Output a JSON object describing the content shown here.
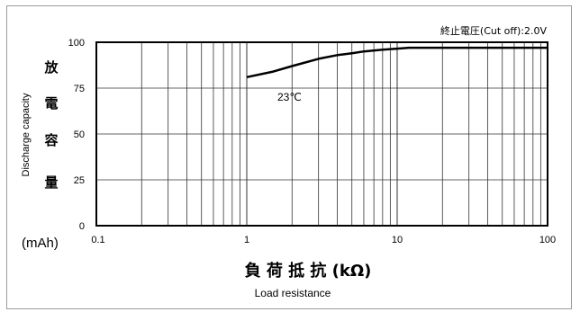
{
  "chart_data": {
    "type": "line",
    "x_scale": "log",
    "xlim": [
      0.1,
      100
    ],
    "ylim": [
      0,
      100
    ],
    "grid": true,
    "x_ticks": [
      {
        "value": 0.1,
        "label": "0.1"
      },
      {
        "value": 1,
        "label": "1"
      },
      {
        "value": 10,
        "label": "10"
      },
      {
        "value": 100,
        "label": "100"
      }
    ],
    "y_ticks": [
      {
        "value": 0,
        "label": "0"
      },
      {
        "value": 25,
        "label": "25"
      },
      {
        "value": 50,
        "label": "50"
      },
      {
        "value": 75,
        "label": "75"
      },
      {
        "value": 100,
        "label": "100"
      }
    ],
    "xlabel": "負 荷 抵 抗 (kΩ)",
    "xlabel_en": "Load resistance",
    "ylabel_chars": [
      "放",
      "電",
      "容",
      "量"
    ],
    "ylabel_en": "Discharge capacity",
    "y_unit": "(mAh)",
    "cutoff_note": "終止電圧(Cut off):2.0V",
    "series": [
      {
        "name": "23℃",
        "color": "#000000",
        "x": [
          1,
          1.5,
          2,
          3,
          4,
          5,
          6,
          8,
          10,
          12,
          15,
          20,
          30,
          50,
          70,
          100
        ],
        "y": [
          81,
          84,
          87,
          91,
          93,
          94,
          95,
          96,
          96.5,
          97,
          97,
          97,
          97,
          97,
          97,
          97
        ]
      }
    ]
  }
}
